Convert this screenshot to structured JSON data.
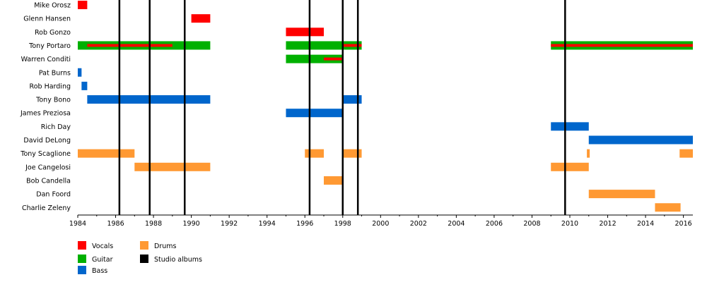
{
  "chart_data": {
    "type": "timeline",
    "xlim": [
      1984,
      2016.5
    ],
    "x_ticks": [
      "1984",
      "1986",
      "1988",
      "1990",
      "1992",
      "1994",
      "1996",
      "1998",
      "2000",
      "2002",
      "2004",
      "2006",
      "2008",
      "2010",
      "2012",
      "2014",
      "2016"
    ],
    "members": [
      {
        "name": "Mike Orosz",
        "bars": [
          {
            "role": "Vocals",
            "start": 1984.0,
            "end": 1984.5
          }
        ]
      },
      {
        "name": "Glenn Hansen",
        "bars": [
          {
            "role": "Vocals",
            "start": 1990.0,
            "end": 1991.0
          }
        ]
      },
      {
        "name": "Rob Gonzo",
        "bars": [
          {
            "role": "Vocals",
            "start": 1995.0,
            "end": 1997.0
          }
        ]
      },
      {
        "name": "Tony Portaro",
        "bars": [
          {
            "role": "Guitar",
            "start": 1984.0,
            "end": 1991.0
          },
          {
            "role": "Vocals",
            "start": 1984.5,
            "end": 1989.0,
            "thin": true
          },
          {
            "role": "Guitar",
            "start": 1995.0,
            "end": 1999.0
          },
          {
            "role": "Vocals",
            "start": 1998.0,
            "end": 1999.0,
            "thin": true
          },
          {
            "role": "Guitar",
            "start": 2009.0,
            "end": 2016.5
          },
          {
            "role": "Vocals",
            "start": 2009.0,
            "end": 2016.5,
            "thin": true
          }
        ]
      },
      {
        "name": "Warren Conditi",
        "bars": [
          {
            "role": "Guitar",
            "start": 1995.0,
            "end": 1998.0
          },
          {
            "role": "Vocals",
            "start": 1997.0,
            "end": 1998.0,
            "thin": true
          }
        ]
      },
      {
        "name": "Pat Burns",
        "bars": [
          {
            "role": "Bass",
            "start": 1984.0,
            "end": 1984.2
          }
        ]
      },
      {
        "name": "Rob Harding",
        "bars": [
          {
            "role": "Bass",
            "start": 1984.2,
            "end": 1984.5
          }
        ]
      },
      {
        "name": "Tony Bono",
        "bars": [
          {
            "role": "Bass",
            "start": 1984.5,
            "end": 1991.0
          },
          {
            "role": "Bass",
            "start": 1998.0,
            "end": 1999.0
          }
        ]
      },
      {
        "name": "James Preziosa",
        "bars": [
          {
            "role": "Bass",
            "start": 1995.0,
            "end": 1998.0
          }
        ]
      },
      {
        "name": "Rich Day",
        "bars": [
          {
            "role": "Bass",
            "start": 2009.0,
            "end": 2011.0
          }
        ]
      },
      {
        "name": "David DeLong",
        "bars": [
          {
            "role": "Bass",
            "start": 2011.0,
            "end": 2016.5
          }
        ]
      },
      {
        "name": "Tony Scaglione",
        "bars": [
          {
            "role": "Drums",
            "start": 1984.0,
            "end": 1987.0
          },
          {
            "role": "Drums",
            "start": 1996.0,
            "end": 1997.0
          },
          {
            "role": "Drums",
            "start": 1998.0,
            "end": 1999.0
          },
          {
            "role": "Drums",
            "start": 2010.9,
            "end": 2011.05
          },
          {
            "role": "Drums",
            "start": 2015.8,
            "end": 2016.5
          }
        ]
      },
      {
        "name": "Joe Cangelosi",
        "bars": [
          {
            "role": "Drums",
            "start": 1987.0,
            "end": 1991.0
          },
          {
            "role": "Drums",
            "start": 2009.0,
            "end": 2011.0
          }
        ]
      },
      {
        "name": "Bob Candella",
        "bars": [
          {
            "role": "Drums",
            "start": 1997.0,
            "end": 1998.0
          }
        ]
      },
      {
        "name": "Dan Foord",
        "bars": [
          {
            "role": "Drums",
            "start": 2011.0,
            "end": 2014.5
          }
        ]
      },
      {
        "name": "Charlie Zeleny",
        "bars": [
          {
            "role": "Drums",
            "start": 2014.5,
            "end": 2015.85
          }
        ]
      }
    ],
    "studio_albums": [
      1986.2,
      1987.8,
      1989.65,
      1996.25,
      1998.0,
      1998.8,
      2009.75
    ],
    "legend": [
      {
        "label": "Vocals",
        "color": "#ff0000"
      },
      {
        "label": "Guitar",
        "color": "#00b000"
      },
      {
        "label": "Bass",
        "color": "#0066cc"
      },
      {
        "label": "Drums",
        "color": "#ff9933"
      },
      {
        "label": "Studio albums",
        "color": "#000000"
      }
    ],
    "colors": {
      "Vocals": "#ff0000",
      "Guitar": "#00b000",
      "Bass": "#0066cc",
      "Drums": "#ff9933",
      "album_line": "#000000",
      "axis": "#000000",
      "grid": "#000000"
    },
    "grid": false,
    "legend_placement": "bottom-left"
  }
}
